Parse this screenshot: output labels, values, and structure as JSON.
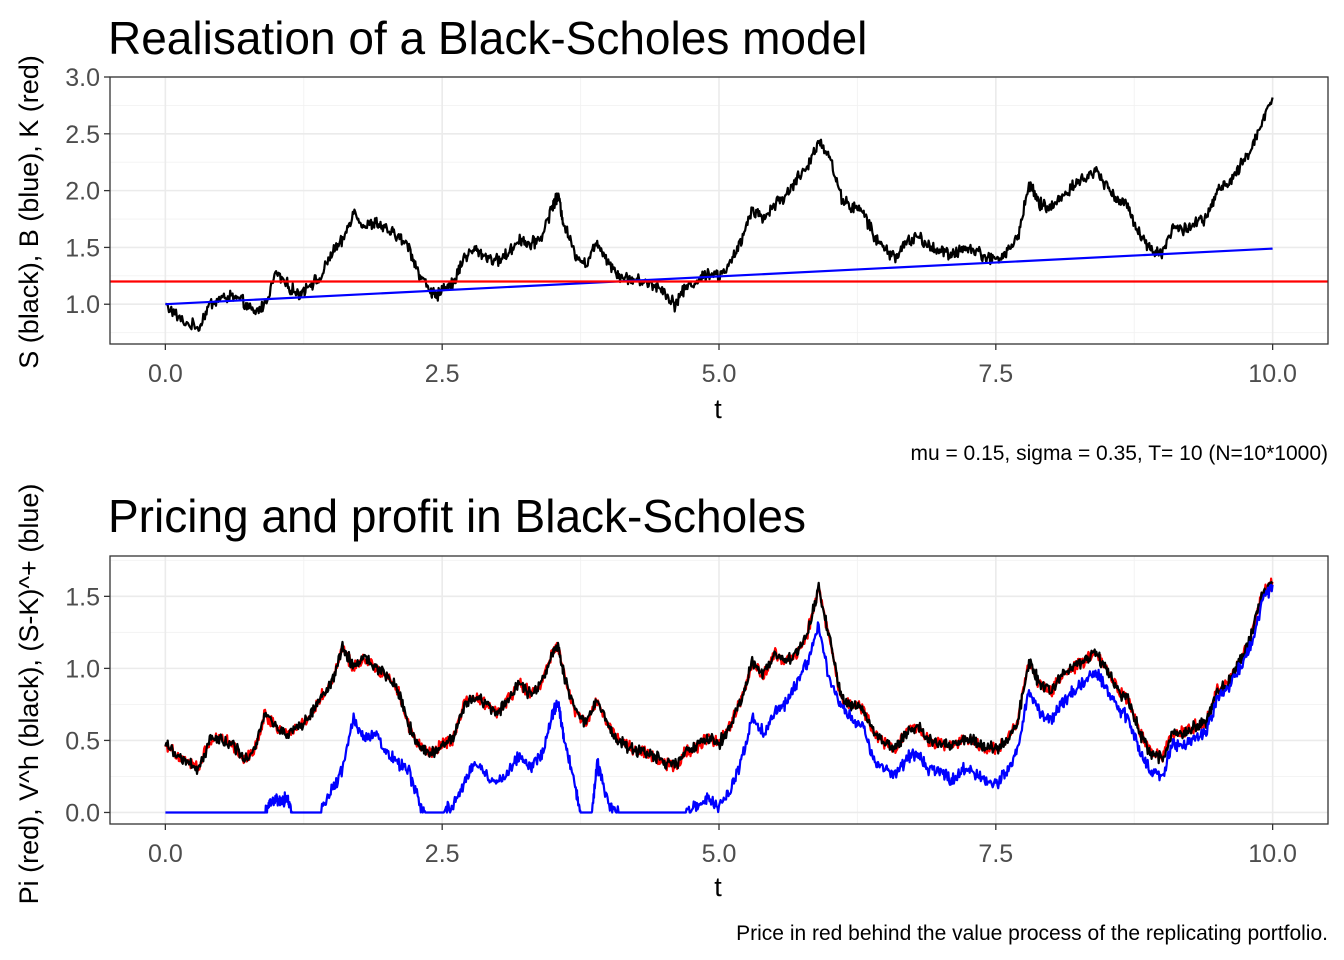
{
  "chart_data": [
    {
      "type": "line",
      "title": "Realisation of a Black-Scholes model",
      "xlabel": "t",
      "ylabel": "S (black), B (blue), K (red)",
      "caption": "mu = 0.15, sigma = 0.35, T= 10 (N=10*1000)",
      "xlim": [
        -0.5,
        10.5
      ],
      "ylim": [
        0.65,
        3.0
      ],
      "xticks": [
        0.0,
        2.5,
        5.0,
        7.5,
        10.0
      ],
      "xtick_labels": [
        "0.0",
        "2.5",
        "5.0",
        "7.5",
        "10.0"
      ],
      "yticks": [
        1.0,
        1.5,
        2.0,
        2.5,
        3.0
      ],
      "ytick_labels": [
        "1.0",
        "1.5",
        "2.0",
        "2.5",
        "3.0"
      ],
      "grid": true,
      "series": [
        {
          "color": "#000000",
          "x": [
            0.0,
            0.15,
            0.3,
            0.4,
            0.5,
            0.6,
            0.7,
            0.8,
            0.9,
            1.0,
            1.1,
            1.2,
            1.3,
            1.4,
            1.5,
            1.6,
            1.7,
            1.8,
            1.9,
            2.0,
            2.1,
            2.2,
            2.3,
            2.4,
            2.45,
            2.5,
            2.6,
            2.7,
            2.8,
            2.9,
            3.0,
            3.1,
            3.2,
            3.3,
            3.4,
            3.5,
            3.55,
            3.6,
            3.7,
            3.8,
            3.9,
            4.0,
            4.1,
            4.2,
            4.3,
            4.4,
            4.5,
            4.6,
            4.7,
            4.8,
            4.9,
            5.0,
            5.1,
            5.2,
            5.3,
            5.4,
            5.5,
            5.6,
            5.7,
            5.8,
            5.9,
            6.0,
            6.1,
            6.2,
            6.3,
            6.4,
            6.5,
            6.6,
            6.7,
            6.8,
            6.9,
            7.0,
            7.1,
            7.2,
            7.3,
            7.4,
            7.5,
            7.6,
            7.7,
            7.8,
            7.9,
            8.0,
            8.1,
            8.2,
            8.3,
            8.4,
            8.5,
            8.6,
            8.7,
            8.8,
            8.9,
            9.0,
            9.1,
            9.2,
            9.3,
            9.4,
            9.5,
            9.6,
            9.7,
            9.8,
            9.9,
            10.0
          ],
          "y": [
            1.0,
            0.85,
            0.79,
            1.0,
            1.05,
            1.07,
            1.02,
            0.92,
            1.0,
            1.28,
            1.17,
            1.08,
            1.18,
            1.22,
            1.45,
            1.55,
            1.82,
            1.68,
            1.72,
            1.65,
            1.6,
            1.5,
            1.25,
            1.12,
            1.05,
            1.15,
            1.18,
            1.42,
            1.48,
            1.42,
            1.38,
            1.45,
            1.58,
            1.52,
            1.6,
            1.88,
            1.95,
            1.7,
            1.45,
            1.35,
            1.55,
            1.38,
            1.25,
            1.22,
            1.2,
            1.18,
            1.12,
            1.0,
            1.15,
            1.2,
            1.28,
            1.25,
            1.35,
            1.55,
            1.85,
            1.75,
            1.88,
            1.95,
            2.1,
            2.2,
            2.45,
            2.3,
            1.95,
            1.85,
            1.82,
            1.6,
            1.48,
            1.42,
            1.55,
            1.6,
            1.5,
            1.48,
            1.42,
            1.5,
            1.48,
            1.42,
            1.4,
            1.45,
            1.6,
            2.05,
            1.88,
            1.85,
            1.95,
            2.05,
            2.1,
            2.18,
            2.05,
            1.92,
            1.85,
            1.62,
            1.48,
            1.45,
            1.68,
            1.65,
            1.72,
            1.75,
            2.0,
            2.05,
            2.2,
            2.35,
            2.6,
            2.82
          ]
        },
        {
          "color": "#0000ff",
          "x": [
            0.0,
            10.0
          ],
          "y": [
            1.0,
            1.49
          ]
        },
        {
          "color": "#ff0000",
          "hline": 1.2
        }
      ]
    },
    {
      "type": "line",
      "title": "Pricing and profit in Black-Scholes",
      "xlabel": "t",
      "ylabel": "Pi (red), V^h (black), (S-K)^+ (blue)",
      "caption": "Price in red behind the value process of the replicating portfolio.",
      "xlim": [
        -0.5,
        10.5
      ],
      "ylim": [
        -0.08,
        1.78
      ],
      "xticks": [
        0.0,
        2.5,
        5.0,
        7.5,
        10.0
      ],
      "xtick_labels": [
        "0.0",
        "2.5",
        "5.0",
        "7.5",
        "10.0"
      ],
      "yticks": [
        0.0,
        0.5,
        1.0,
        1.5
      ],
      "ytick_labels": [
        "0.0",
        "0.5",
        "1.0",
        "1.5"
      ],
      "grid": true,
      "series": [
        {
          "color": "#ff0000",
          "x": [
            0.0,
            0.1,
            0.2,
            0.3,
            0.4,
            0.5,
            0.6,
            0.7,
            0.8,
            0.9,
            1.0,
            1.1,
            1.2,
            1.3,
            1.4,
            1.5,
            1.6,
            1.7,
            1.8,
            1.9,
            2.0,
            2.1,
            2.2,
            2.3,
            2.4,
            2.5,
            2.6,
            2.7,
            2.8,
            2.9,
            3.0,
            3.1,
            3.2,
            3.3,
            3.4,
            3.5,
            3.55,
            3.6,
            3.7,
            3.8,
            3.9,
            4.0,
            4.1,
            4.2,
            4.3,
            4.4,
            4.5,
            4.6,
            4.7,
            4.8,
            4.9,
            5.0,
            5.1,
            5.2,
            5.3,
            5.4,
            5.5,
            5.6,
            5.7,
            5.8,
            5.9,
            6.0,
            6.1,
            6.2,
            6.3,
            6.4,
            6.5,
            6.6,
            6.7,
            6.8,
            6.9,
            7.0,
            7.1,
            7.2,
            7.3,
            7.4,
            7.5,
            7.6,
            7.7,
            7.8,
            7.9,
            8.0,
            8.1,
            8.2,
            8.3,
            8.4,
            8.5,
            8.6,
            8.7,
            8.8,
            8.9,
            9.0,
            9.1,
            9.2,
            9.3,
            9.4,
            9.5,
            9.6,
            9.7,
            9.8,
            9.9,
            10.0
          ],
          "y": [
            0.48,
            0.4,
            0.36,
            0.3,
            0.5,
            0.52,
            0.48,
            0.38,
            0.42,
            0.68,
            0.6,
            0.55,
            0.6,
            0.65,
            0.8,
            0.9,
            1.15,
            1.0,
            1.08,
            1.0,
            0.95,
            0.85,
            0.6,
            0.45,
            0.4,
            0.48,
            0.5,
            0.75,
            0.8,
            0.75,
            0.7,
            0.78,
            0.9,
            0.82,
            0.9,
            1.12,
            1.15,
            0.95,
            0.7,
            0.62,
            0.78,
            0.6,
            0.5,
            0.45,
            0.42,
            0.4,
            0.35,
            0.32,
            0.42,
            0.45,
            0.52,
            0.48,
            0.6,
            0.78,
            1.05,
            0.95,
            1.1,
            1.05,
            1.1,
            1.25,
            1.55,
            1.2,
            0.8,
            0.75,
            0.72,
            0.55,
            0.48,
            0.45,
            0.55,
            0.6,
            0.5,
            0.48,
            0.45,
            0.52,
            0.5,
            0.45,
            0.44,
            0.5,
            0.65,
            1.05,
            0.88,
            0.85,
            0.95,
            1.0,
            1.05,
            1.1,
            1.0,
            0.85,
            0.78,
            0.55,
            0.42,
            0.38,
            0.55,
            0.55,
            0.6,
            0.62,
            0.85,
            0.9,
            1.05,
            1.2,
            1.5,
            1.6
          ]
        },
        {
          "color": "#000000",
          "x": [
            0.0,
            0.1,
            0.2,
            0.3,
            0.4,
            0.5,
            0.6,
            0.7,
            0.8,
            0.9,
            1.0,
            1.1,
            1.2,
            1.3,
            1.4,
            1.5,
            1.6,
            1.7,
            1.8,
            1.9,
            2.0,
            2.1,
            2.2,
            2.3,
            2.4,
            2.5,
            2.6,
            2.7,
            2.8,
            2.9,
            3.0,
            3.1,
            3.2,
            3.3,
            3.4,
            3.5,
            3.55,
            3.6,
            3.7,
            3.8,
            3.9,
            4.0,
            4.1,
            4.2,
            4.3,
            4.4,
            4.5,
            4.6,
            4.7,
            4.8,
            4.9,
            5.0,
            5.1,
            5.2,
            5.3,
            5.4,
            5.5,
            5.6,
            5.7,
            5.8,
            5.9,
            6.0,
            6.1,
            6.2,
            6.3,
            6.4,
            6.5,
            6.6,
            6.7,
            6.8,
            6.9,
            7.0,
            7.1,
            7.2,
            7.3,
            7.4,
            7.5,
            7.6,
            7.7,
            7.8,
            7.9,
            8.0,
            8.1,
            8.2,
            8.3,
            8.4,
            8.5,
            8.6,
            8.7,
            8.8,
            8.9,
            9.0,
            9.1,
            9.2,
            9.3,
            9.4,
            9.5,
            9.6,
            9.7,
            9.8,
            9.9,
            10.0
          ],
          "y": [
            0.48,
            0.4,
            0.36,
            0.3,
            0.5,
            0.52,
            0.48,
            0.38,
            0.42,
            0.68,
            0.6,
            0.55,
            0.6,
            0.65,
            0.8,
            0.9,
            1.15,
            1.0,
            1.08,
            1.0,
            0.95,
            0.85,
            0.6,
            0.45,
            0.4,
            0.48,
            0.5,
            0.75,
            0.8,
            0.75,
            0.7,
            0.78,
            0.9,
            0.82,
            0.9,
            1.12,
            1.15,
            0.95,
            0.7,
            0.62,
            0.78,
            0.6,
            0.5,
            0.45,
            0.42,
            0.4,
            0.35,
            0.32,
            0.42,
            0.45,
            0.52,
            0.48,
            0.6,
            0.78,
            1.05,
            0.95,
            1.1,
            1.05,
            1.1,
            1.25,
            1.55,
            1.2,
            0.8,
            0.75,
            0.72,
            0.55,
            0.48,
            0.45,
            0.55,
            0.6,
            0.5,
            0.48,
            0.45,
            0.52,
            0.5,
            0.45,
            0.44,
            0.5,
            0.65,
            1.05,
            0.88,
            0.85,
            0.95,
            1.0,
            1.05,
            1.1,
            1.0,
            0.85,
            0.78,
            0.55,
            0.42,
            0.38,
            0.55,
            0.55,
            0.6,
            0.62,
            0.85,
            0.9,
            1.05,
            1.2,
            1.5,
            1.6
          ]
        },
        {
          "color": "#0000ff",
          "x": [
            0.0,
            0.9,
            0.95,
            1.0,
            1.05,
            1.1,
            1.15,
            1.4,
            1.5,
            1.6,
            1.7,
            1.8,
            1.9,
            2.0,
            2.1,
            2.2,
            2.3,
            2.35,
            2.5,
            2.6,
            2.7,
            2.8,
            2.9,
            3.0,
            3.1,
            3.2,
            3.3,
            3.4,
            3.5,
            3.55,
            3.6,
            3.7,
            3.75,
            3.85,
            3.9,
            4.0,
            4.1,
            4.2,
            4.3,
            4.4,
            4.5,
            4.6,
            4.7,
            4.8,
            4.9,
            5.0,
            5.1,
            5.2,
            5.3,
            5.4,
            5.5,
            5.6,
            5.7,
            5.8,
            5.9,
            6.0,
            6.1,
            6.2,
            6.3,
            6.4,
            6.5,
            6.6,
            6.7,
            6.8,
            6.9,
            7.0,
            7.1,
            7.2,
            7.3,
            7.4,
            7.5,
            7.6,
            7.7,
            7.8,
            7.9,
            8.0,
            8.1,
            8.2,
            8.3,
            8.4,
            8.5,
            8.6,
            8.7,
            8.8,
            8.9,
            9.0,
            9.1,
            9.2,
            9.3,
            9.4,
            9.5,
            9.6,
            9.7,
            9.8,
            9.9,
            10.0
          ],
          "y": [
            0.0,
            0.0,
            0.05,
            0.1,
            0.08,
            0.1,
            0.0,
            0.0,
            0.15,
            0.3,
            0.65,
            0.5,
            0.55,
            0.42,
            0.35,
            0.28,
            0.05,
            0.0,
            0.0,
            0.05,
            0.2,
            0.35,
            0.25,
            0.2,
            0.28,
            0.4,
            0.32,
            0.4,
            0.7,
            0.75,
            0.5,
            0.2,
            0.0,
            0.0,
            0.35,
            0.05,
            0.0,
            0.0,
            0.0,
            0.0,
            0.0,
            0.0,
            0.0,
            0.05,
            0.1,
            0.05,
            0.15,
            0.35,
            0.65,
            0.55,
            0.7,
            0.75,
            0.9,
            1.05,
            1.3,
            0.9,
            0.75,
            0.65,
            0.6,
            0.35,
            0.3,
            0.25,
            0.38,
            0.4,
            0.3,
            0.28,
            0.22,
            0.3,
            0.28,
            0.22,
            0.2,
            0.28,
            0.45,
            0.85,
            0.68,
            0.65,
            0.75,
            0.85,
            0.9,
            0.98,
            0.85,
            0.72,
            0.65,
            0.42,
            0.28,
            0.25,
            0.48,
            0.45,
            0.52,
            0.55,
            0.8,
            0.85,
            1.0,
            1.15,
            1.45,
            1.58
          ]
        }
      ]
    }
  ]
}
